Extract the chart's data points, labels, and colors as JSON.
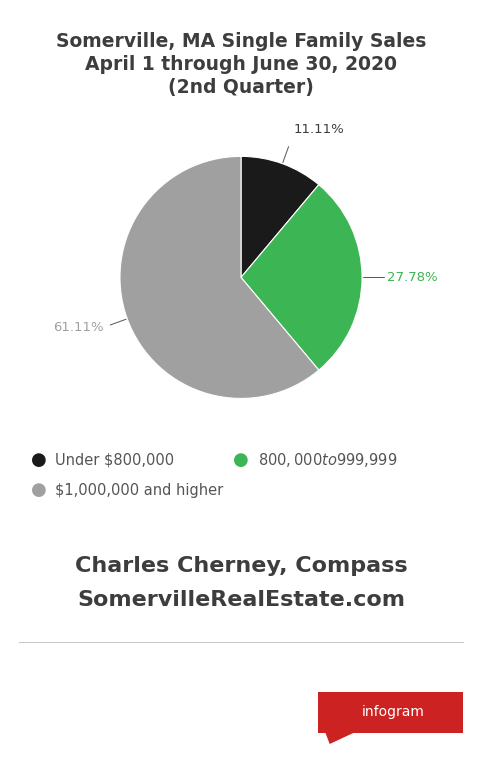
{
  "title_line1": "Somerville, MA Single Family Sales",
  "title_line2": "April 1 through June 30, 2020",
  "title_line3": "(2nd Quarter)",
  "slices": [
    11.11,
    27.78,
    61.11
  ],
  "slice_labels": [
    "11.11%",
    "27.78%",
    "61.11%"
  ],
  "slice_colors": [
    "#1a1a1a",
    "#3cb554",
    "#a0a0a0"
  ],
  "legend_labels": [
    "Under $800,000",
    "$800,000 to $999,999",
    "$1,000,000 and higher"
  ],
  "legend_colors": [
    "#1a1a1a",
    "#3cb554",
    "#a0a0a0"
  ],
  "author_line1": "Charles Cherney, Compass",
  "author_line2": "SomervilleRealEstate.com",
  "background_color": "#ffffff",
  "title_color": "#3d3d3d",
  "author_color": "#3d3d3d",
  "label_colors": [
    "#3d3d3d",
    "#3cb554",
    "#a0a0a0"
  ],
  "infogram_color": "#cc2222"
}
